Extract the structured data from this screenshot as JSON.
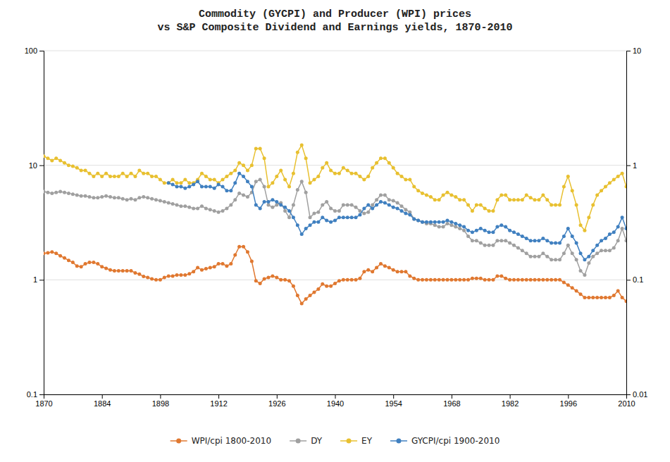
{
  "chart_data": {
    "type": "line",
    "title": "Commodity (GYCPI) and Producer (WPI) prices\nvs S&P Composite Dividend and Earnings yields, 1870-2010",
    "x": [
      1870,
      1871,
      1872,
      1873,
      1874,
      1875,
      1876,
      1877,
      1878,
      1879,
      1880,
      1881,
      1882,
      1883,
      1884,
      1885,
      1886,
      1887,
      1888,
      1889,
      1890,
      1891,
      1892,
      1893,
      1894,
      1895,
      1896,
      1897,
      1898,
      1899,
      1900,
      1901,
      1902,
      1903,
      1904,
      1905,
      1906,
      1907,
      1908,
      1909,
      1910,
      1911,
      1912,
      1913,
      1914,
      1915,
      1916,
      1917,
      1918,
      1919,
      1920,
      1921,
      1922,
      1923,
      1924,
      1925,
      1926,
      1927,
      1928,
      1929,
      1930,
      1931,
      1932,
      1933,
      1934,
      1935,
      1936,
      1937,
      1938,
      1939,
      1940,
      1941,
      1942,
      1943,
      1944,
      1945,
      1946,
      1947,
      1948,
      1949,
      1950,
      1951,
      1952,
      1953,
      1954,
      1955,
      1956,
      1957,
      1958,
      1959,
      1960,
      1961,
      1962,
      1963,
      1964,
      1965,
      1966,
      1967,
      1968,
      1969,
      1970,
      1971,
      1972,
      1973,
      1974,
      1975,
      1976,
      1977,
      1978,
      1979,
      1980,
      1981,
      1982,
      1983,
      1984,
      1985,
      1986,
      1987,
      1988,
      1989,
      1990,
      1991,
      1992,
      1993,
      1994,
      1995,
      1996,
      1997,
      1998,
      1999,
      2000,
      2001,
      2002,
      2003,
      2004,
      2005,
      2006,
      2007,
      2008,
      2009,
      2010
    ],
    "series": [
      {
        "name": "WPI/cpi 1800-2010",
        "color": "#e07830",
        "marker": "circle",
        "line_style": "solid",
        "values": [
          1.7,
          1.72,
          1.75,
          1.7,
          1.62,
          1.55,
          1.48,
          1.42,
          1.32,
          1.3,
          1.38,
          1.42,
          1.42,
          1.38,
          1.3,
          1.26,
          1.22,
          1.2,
          1.2,
          1.2,
          1.2,
          1.2,
          1.15,
          1.12,
          1.07,
          1.05,
          1.02,
          1.0,
          1.0,
          1.05,
          1.08,
          1.08,
          1.1,
          1.1,
          1.1,
          1.13,
          1.18,
          1.28,
          1.22,
          1.25,
          1.28,
          1.3,
          1.38,
          1.38,
          1.32,
          1.38,
          1.65,
          1.95,
          1.95,
          1.75,
          1.45,
          0.98,
          0.93,
          1.02,
          1.05,
          1.08,
          1.05,
          1.0,
          1.0,
          0.98,
          0.88,
          0.73,
          0.62,
          0.68,
          0.73,
          0.78,
          0.83,
          0.92,
          0.88,
          0.88,
          0.93,
          0.98,
          1.0,
          1.0,
          1.0,
          1.0,
          1.03,
          1.18,
          1.22,
          1.18,
          1.28,
          1.38,
          1.32,
          1.28,
          1.22,
          1.18,
          1.18,
          1.18,
          1.08,
          1.03,
          1.0,
          1.0,
          1.0,
          1.0,
          1.0,
          1.0,
          1.0,
          1.0,
          1.0,
          1.0,
          1.0,
          1.0,
          1.0,
          1.03,
          1.03,
          1.03,
          1.0,
          1.0,
          1.0,
          1.08,
          1.08,
          1.03,
          1.0,
          1.0,
          1.0,
          1.0,
          1.0,
          1.0,
          1.0,
          1.0,
          1.0,
          1.0,
          1.0,
          1.0,
          1.0,
          0.95,
          0.9,
          0.85,
          0.8,
          0.75,
          0.7,
          0.7,
          0.7,
          0.7,
          0.7,
          0.7,
          0.7,
          0.73,
          0.8,
          0.7,
          0.65
        ]
      },
      {
        "name": "DY",
        "color": "#a0a0a0",
        "marker": "circle",
        "line_style": "solid",
        "values": [
          5.9,
          5.8,
          5.7,
          5.8,
          5.9,
          5.8,
          5.7,
          5.6,
          5.5,
          5.4,
          5.4,
          5.3,
          5.2,
          5.2,
          5.3,
          5.4,
          5.3,
          5.2,
          5.2,
          5.1,
          5.0,
          5.1,
          5.0,
          5.2,
          5.3,
          5.2,
          5.1,
          5.0,
          4.9,
          4.8,
          4.7,
          4.6,
          4.5,
          4.4,
          4.4,
          4.3,
          4.2,
          4.2,
          4.4,
          4.2,
          4.1,
          4.0,
          3.9,
          4.0,
          4.2,
          4.5,
          5.0,
          5.7,
          5.5,
          5.3,
          5.8,
          7.2,
          7.5,
          6.5,
          4.5,
          4.3,
          4.5,
          4.7,
          4.0,
          3.5,
          4.5,
          6.1,
          7.2,
          5.8,
          3.5,
          3.8,
          3.9,
          4.5,
          4.8,
          4.2,
          4.0,
          4.0,
          4.5,
          4.5,
          4.5,
          4.3,
          4.0,
          3.8,
          3.9,
          4.5,
          5.0,
          5.5,
          5.5,
          5.0,
          4.9,
          4.7,
          4.4,
          4.1,
          3.9,
          3.4,
          3.3,
          3.2,
          3.1,
          3.1,
          3.0,
          2.9,
          2.9,
          3.1,
          3.0,
          2.9,
          2.8,
          2.7,
          2.4,
          2.2,
          2.2,
          2.1,
          2.0,
          2.0,
          2.0,
          2.2,
          2.2,
          2.2,
          2.1,
          2.0,
          1.9,
          1.8,
          1.7,
          1.6,
          1.6,
          1.6,
          1.7,
          1.6,
          1.5,
          1.5,
          1.5,
          1.7,
          2.0,
          1.7,
          1.5,
          1.2,
          1.1,
          1.4,
          1.6,
          1.7,
          1.8,
          1.8,
          1.8,
          1.9,
          2.2,
          2.8,
          2.2
        ]
      },
      {
        "name": "EY",
        "color": "#e8c030",
        "marker": "circle",
        "line_style": "solid",
        "values": [
          12.0,
          11.5,
          11.0,
          11.5,
          11.0,
          10.5,
          10.0,
          9.8,
          9.5,
          9.0,
          9.0,
          8.5,
          8.0,
          8.5,
          8.0,
          8.5,
          8.0,
          8.0,
          8.0,
          8.5,
          8.0,
          8.5,
          8.0,
          9.0,
          8.5,
          8.5,
          8.0,
          8.0,
          7.5,
          7.0,
          7.0,
          7.5,
          7.0,
          7.0,
          7.5,
          7.0,
          7.0,
          7.5,
          8.5,
          8.0,
          7.5,
          7.5,
          7.0,
          7.5,
          8.0,
          8.5,
          9.0,
          10.5,
          10.0,
          9.0,
          10.0,
          14.0,
          14.0,
          11.5,
          6.5,
          7.0,
          8.0,
          9.0,
          7.5,
          6.5,
          8.5,
          13.0,
          15.0,
          11.5,
          7.0,
          7.5,
          8.0,
          9.5,
          10.5,
          9.0,
          8.5,
          8.5,
          9.5,
          9.0,
          8.5,
          8.5,
          8.0,
          7.5,
          8.0,
          9.5,
          10.5,
          11.5,
          11.5,
          10.5,
          9.5,
          8.5,
          8.0,
          7.5,
          7.5,
          6.5,
          6.0,
          5.7,
          5.5,
          5.3,
          5.0,
          5.0,
          5.5,
          5.8,
          5.5,
          5.3,
          5.0,
          5.0,
          4.5,
          4.0,
          4.5,
          4.5,
          4.2,
          4.0,
          4.0,
          5.0,
          5.5,
          5.5,
          5.0,
          5.0,
          5.0,
          5.0,
          5.5,
          5.2,
          5.0,
          5.0,
          5.5,
          5.0,
          4.5,
          4.5,
          4.5,
          6.5,
          8.0,
          6.0,
          4.5,
          3.0,
          2.7,
          3.5,
          4.5,
          5.5,
          6.0,
          6.5,
          7.0,
          7.5,
          8.0,
          8.5,
          6.5
        ]
      },
      {
        "name": "GYCPI/cpi 1900-2010",
        "color": "#4080c0",
        "marker": "circle",
        "line_style": "solid",
        "values": [
          null,
          null,
          null,
          null,
          null,
          null,
          null,
          null,
          null,
          null,
          null,
          null,
          null,
          null,
          null,
          null,
          null,
          null,
          null,
          null,
          null,
          null,
          null,
          null,
          null,
          null,
          null,
          null,
          null,
          null,
          7.0,
          6.8,
          6.5,
          6.5,
          6.3,
          6.5,
          6.8,
          7.2,
          6.5,
          6.5,
          6.5,
          6.3,
          6.8,
          6.5,
          6.0,
          6.0,
          7.0,
          8.5,
          8.0,
          7.2,
          6.5,
          4.5,
          4.2,
          4.8,
          4.8,
          5.0,
          4.8,
          4.5,
          4.3,
          4.0,
          3.5,
          3.0,
          2.5,
          2.8,
          3.0,
          3.2,
          3.2,
          3.5,
          3.3,
          3.2,
          3.3,
          3.5,
          3.5,
          3.5,
          3.5,
          3.5,
          3.7,
          4.2,
          4.5,
          4.2,
          4.5,
          4.8,
          4.7,
          4.5,
          4.3,
          4.2,
          4.0,
          3.8,
          3.7,
          3.4,
          3.3,
          3.2,
          3.2,
          3.2,
          3.2,
          3.2,
          3.2,
          3.3,
          3.2,
          3.1,
          3.0,
          2.9,
          2.7,
          2.6,
          2.7,
          2.8,
          2.7,
          2.6,
          2.6,
          2.9,
          3.0,
          2.9,
          2.7,
          2.6,
          2.5,
          2.4,
          2.3,
          2.2,
          2.2,
          2.2,
          2.3,
          2.2,
          2.1,
          2.1,
          2.1,
          2.4,
          2.8,
          2.4,
          2.1,
          1.7,
          1.5,
          1.6,
          1.8,
          2.0,
          2.2,
          2.3,
          2.5,
          2.6,
          2.9,
          3.5,
          2.8
        ]
      }
    ],
    "xlim": [
      1870,
      2010
    ],
    "xticks": [
      1870,
      1884,
      1898,
      1912,
      1926,
      1940,
      1954,
      1968,
      1982,
      1996,
      2010
    ],
    "ylim": [
      0.1,
      100
    ],
    "yticks": [
      0.1,
      1,
      10,
      100
    ],
    "y2lim": [
      0.01,
      10
    ],
    "y2ticks": [
      0.01,
      0.1,
      1,
      10
    ],
    "log": "y",
    "grid": true,
    "legend": "bottom"
  }
}
